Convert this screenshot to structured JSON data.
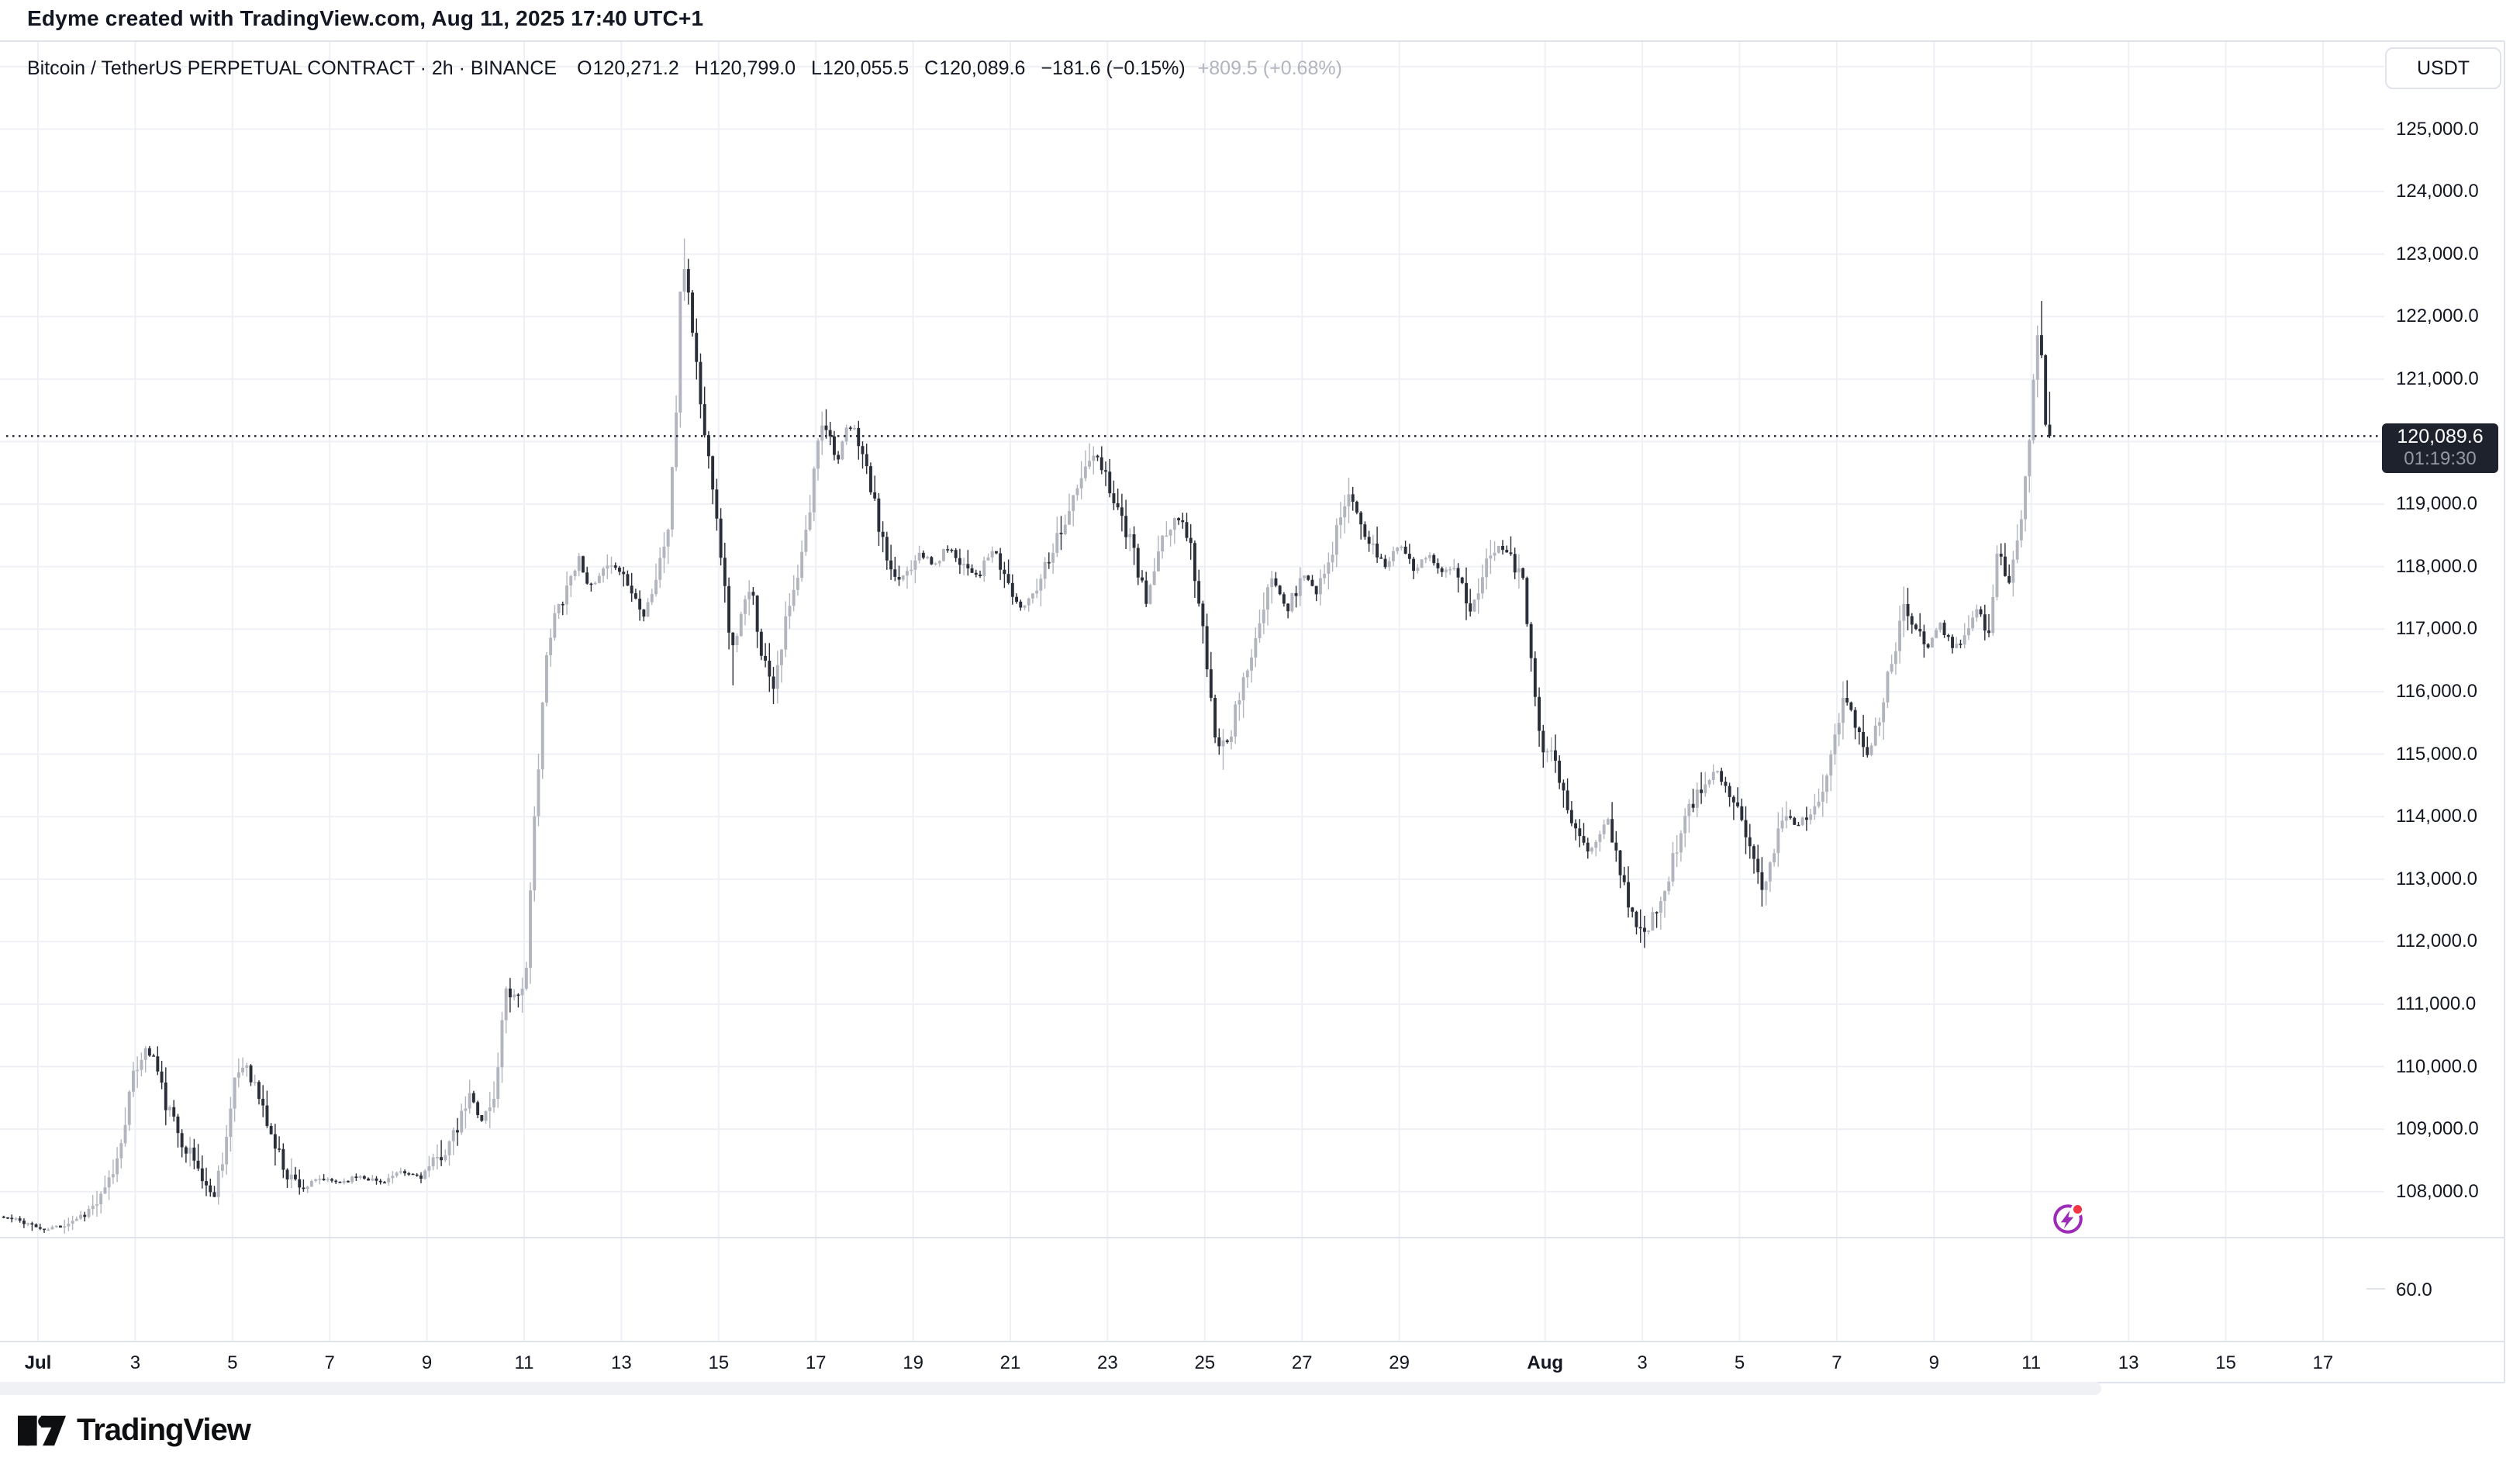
{
  "header": {
    "credit": "Edyme created with TradingView.com, Aug 11, 2025 17:40 UTC+1"
  },
  "symbol_row": {
    "description": "Bitcoin / TetherUS PERPETUAL CONTRACT · 2h · BINANCE",
    "ohlc_o_label": "O",
    "ohlc_o": "120,271.2",
    "ohlc_h_label": "H",
    "ohlc_h": "120,799.0",
    "ohlc_l_label": "L",
    "ohlc_l": "120,055.5",
    "ohlc_c_label": "C",
    "ohlc_c": "120,089.6",
    "change": "−181.6 (−0.15%)",
    "change_secondary": "+809.5 (+0.68%)"
  },
  "price_axis": {
    "currency": "USDT",
    "ticks": [
      {
        "label": "125,000.0",
        "value": 125000
      },
      {
        "label": "124,000.0",
        "value": 124000
      },
      {
        "label": "123,000.0",
        "value": 123000
      },
      {
        "label": "122,000.0",
        "value": 122000
      },
      {
        "label": "121,000.0",
        "value": 121000
      },
      {
        "label": "119,000.0",
        "value": 119000
      },
      {
        "label": "118,000.0",
        "value": 118000
      },
      {
        "label": "117,000.0",
        "value": 117000
      },
      {
        "label": "116,000.0",
        "value": 116000
      },
      {
        "label": "115,000.0",
        "value": 115000
      },
      {
        "label": "114,000.0",
        "value": 114000
      },
      {
        "label": "113,000.0",
        "value": 113000
      },
      {
        "label": "112,000.0",
        "value": 112000
      },
      {
        "label": "111,000.0",
        "value": 111000
      },
      {
        "label": "110,000.0",
        "value": 110000
      },
      {
        "label": "109,000.0",
        "value": 109000
      },
      {
        "label": "108,000.0",
        "value": 108000
      }
    ],
    "last_price": {
      "label": "120,089.6",
      "value": 120089.6,
      "countdown": "01:19:30"
    },
    "lower_pane_label": "60.0"
  },
  "time_axis": {
    "labels": [
      {
        "text": "Jul",
        "day": 0,
        "bold": true
      },
      {
        "text": "3",
        "day": 2
      },
      {
        "text": "5",
        "day": 4
      },
      {
        "text": "7",
        "day": 6
      },
      {
        "text": "9",
        "day": 8
      },
      {
        "text": "11",
        "day": 10
      },
      {
        "text": "13",
        "day": 12
      },
      {
        "text": "15",
        "day": 14
      },
      {
        "text": "17",
        "day": 16
      },
      {
        "text": "19",
        "day": 18
      },
      {
        "text": "21",
        "day": 20
      },
      {
        "text": "23",
        "day": 22
      },
      {
        "text": "25",
        "day": 24
      },
      {
        "text": "27",
        "day": 26
      },
      {
        "text": "29",
        "day": 28
      },
      {
        "text": "Aug",
        "day": 31,
        "bold": true
      },
      {
        "text": "3",
        "day": 33
      },
      {
        "text": "5",
        "day": 35
      },
      {
        "text": "7",
        "day": 37
      },
      {
        "text": "9",
        "day": 39
      },
      {
        "text": "11",
        "day": 41
      },
      {
        "text": "13",
        "day": 43
      },
      {
        "text": "15",
        "day": 45
      },
      {
        "text": "17",
        "day": 47
      }
    ]
  },
  "footer": {
    "brand": "TradingView"
  },
  "colors": {
    "up": "#b2b5be",
    "down": "#2a2e39",
    "text": "#131722",
    "muted_text": "#b2b5be",
    "grid": "#eef0f5",
    "border": "#e0e3eb",
    "badge_bg": "#1e222d",
    "badge_countdown": "#9598a1",
    "price_line": "#1a1e2a",
    "accent_purple": "#9c2bb8",
    "accent_red": "#f23645",
    "scroll_thumb": "#f0f1f5"
  },
  "chart_data": {
    "type": "candlestick",
    "title": "Bitcoin / TetherUS PERPETUAL CONTRACT",
    "interval": "2h",
    "exchange": "BINANCE",
    "quote_currency": "USDT",
    "x_range": [
      "Jun 30 2025",
      "Aug 11 2025 17:40"
    ],
    "y_axis": {
      "min": 107000,
      "max": 126000,
      "tick_step": 1000,
      "grid": true
    },
    "lower_pane_value": 60.0,
    "ohlc_last": {
      "open": 120271.2,
      "high": 120799.0,
      "low": 120055.5,
      "close": 120089.6,
      "change": -181.6,
      "change_pct": -0.15,
      "change2": 809.5,
      "change2_pct": 0.68
    },
    "last_price": 120089.6,
    "price_anchors": [
      [
        -0.42,
        107600
      ],
      [
        0.08,
        107520
      ],
      [
        0.5,
        107380
      ],
      [
        0.92,
        107480
      ],
      [
        1.33,
        107650
      ],
      [
        1.71,
        107900
      ],
      [
        2.0,
        108500
      ],
      [
        2.29,
        109700
      ],
      [
        2.54,
        110300
      ],
      [
        2.75,
        110150
      ],
      [
        3.0,
        109400
      ],
      [
        3.29,
        108900
      ],
      [
        3.58,
        108500
      ],
      [
        3.96,
        107900
      ],
      [
        4.21,
        108700
      ],
      [
        4.46,
        109900
      ],
      [
        4.67,
        110050
      ],
      [
        4.92,
        109500
      ],
      [
        5.21,
        108800
      ],
      [
        5.5,
        108300
      ],
      [
        5.83,
        108050
      ],
      [
        6.17,
        108200
      ],
      [
        6.58,
        108150
      ],
      [
        7.0,
        108250
      ],
      [
        7.42,
        108150
      ],
      [
        7.83,
        108300
      ],
      [
        8.25,
        108250
      ],
      [
        8.58,
        108500
      ],
      [
        8.96,
        108900
      ],
      [
        9.25,
        109550
      ],
      [
        9.5,
        109150
      ],
      [
        9.75,
        109450
      ],
      [
        10.0,
        111300
      ],
      [
        10.21,
        111100
      ],
      [
        10.42,
        111500
      ],
      [
        10.58,
        113900
      ],
      [
        10.79,
        116300
      ],
      [
        11.0,
        117200
      ],
      [
        11.25,
        117700
      ],
      [
        11.5,
        118150
      ],
      [
        11.75,
        117650
      ],
      [
        12.0,
        117900
      ],
      [
        12.29,
        118050
      ],
      [
        12.58,
        117600
      ],
      [
        12.83,
        117250
      ],
      [
        13.08,
        117800
      ],
      [
        13.33,
        118600
      ],
      [
        13.5,
        120500
      ],
      [
        13.62,
        123050
      ],
      [
        13.75,
        122400
      ],
      [
        13.92,
        121200
      ],
      [
        14.08,
        120100
      ],
      [
        14.29,
        119200
      ],
      [
        14.5,
        117600
      ],
      [
        14.65,
        116600
      ],
      [
        14.83,
        117200
      ],
      [
        15.04,
        117650
      ],
      [
        15.29,
        116500
      ],
      [
        15.5,
        116150
      ],
      [
        15.75,
        117100
      ],
      [
        16.0,
        117800
      ],
      [
        16.25,
        118900
      ],
      [
        16.46,
        120400
      ],
      [
        16.62,
        120150
      ],
      [
        16.83,
        119700
      ],
      [
        17.04,
        120250
      ],
      [
        17.25,
        120050
      ],
      [
        17.46,
        119400
      ],
      [
        17.71,
        118500
      ],
      [
        17.96,
        117700
      ],
      [
        18.21,
        117900
      ],
      [
        18.5,
        118250
      ],
      [
        18.79,
        118000
      ],
      [
        19.08,
        118300
      ],
      [
        19.42,
        118050
      ],
      [
        19.71,
        117850
      ],
      [
        20.0,
        118250
      ],
      [
        20.29,
        117800
      ],
      [
        20.58,
        117300
      ],
      [
        20.88,
        117650
      ],
      [
        21.17,
        118200
      ],
      [
        21.5,
        118750
      ],
      [
        21.79,
        119300
      ],
      [
        22.04,
        119800
      ],
      [
        22.29,
        119550
      ],
      [
        22.58,
        118950
      ],
      [
        22.88,
        118300
      ],
      [
        23.17,
        117400
      ],
      [
        23.46,
        118300
      ],
      [
        23.75,
        118800
      ],
      [
        24.04,
        118550
      ],
      [
        24.33,
        117000
      ],
      [
        24.58,
        115200
      ],
      [
        24.88,
        115300
      ],
      [
        25.17,
        116200
      ],
      [
        25.46,
        116900
      ],
      [
        25.75,
        117800
      ],
      [
        26.08,
        117300
      ],
      [
        26.38,
        117900
      ],
      [
        26.67,
        117600
      ],
      [
        27.0,
        118300
      ],
      [
        27.29,
        119200
      ],
      [
        27.54,
        118900
      ],
      [
        27.79,
        118300
      ],
      [
        28.08,
        118000
      ],
      [
        28.38,
        118400
      ],
      [
        28.67,
        117900
      ],
      [
        29.0,
        118200
      ],
      [
        29.29,
        117900
      ],
      [
        29.54,
        118100
      ],
      [
        29.79,
        117200
      ],
      [
        30.08,
        117900
      ],
      [
        30.38,
        118400
      ],
      [
        30.67,
        118200
      ],
      [
        30.92,
        117700
      ],
      [
        31.08,
        116600
      ],
      [
        31.29,
        115200
      ],
      [
        31.54,
        114950
      ],
      [
        31.79,
        114200
      ],
      [
        32.04,
        113700
      ],
      [
        32.29,
        113400
      ],
      [
        32.63,
        113950
      ],
      [
        32.88,
        113300
      ],
      [
        33.13,
        112500
      ],
      [
        33.38,
        112100
      ],
      [
        33.63,
        112400
      ],
      [
        33.88,
        113000
      ],
      [
        34.13,
        113650
      ],
      [
        34.38,
        114200
      ],
      [
        34.63,
        114450
      ],
      [
        34.88,
        114800
      ],
      [
        35.13,
        114500
      ],
      [
        35.38,
        114050
      ],
      [
        35.63,
        113400
      ],
      [
        35.83,
        112800
      ],
      [
        36.04,
        113400
      ],
      [
        36.29,
        114100
      ],
      [
        36.54,
        113850
      ],
      [
        36.83,
        114100
      ],
      [
        37.08,
        114500
      ],
      [
        37.33,
        115300
      ],
      [
        37.54,
        115900
      ],
      [
        37.79,
        115400
      ],
      [
        38.0,
        114950
      ],
      [
        38.25,
        115600
      ],
      [
        38.5,
        116500
      ],
      [
        38.75,
        117300
      ],
      [
        39.0,
        117100
      ],
      [
        39.25,
        116700
      ],
      [
        39.5,
        117100
      ],
      [
        39.75,
        116650
      ],
      [
        40.0,
        116950
      ],
      [
        40.25,
        117300
      ],
      [
        40.5,
        117000
      ],
      [
        40.7,
        118300
      ],
      [
        40.88,
        117700
      ],
      [
        41.04,
        118200
      ],
      [
        41.17,
        118800
      ],
      [
        41.29,
        119600
      ],
      [
        41.42,
        120900
      ],
      [
        41.5,
        121800
      ],
      [
        41.58,
        121500
      ],
      [
        41.667,
        120271.2
      ],
      [
        41.75,
        120089.6
      ]
    ],
    "wick_overrides": [
      {
        "day": 13.58,
        "high": 123250
      },
      {
        "day": 41.46,
        "high": 122250
      },
      {
        "day": 14.6,
        "low": 116100
      },
      {
        "day": 15.42,
        "low": 115800
      },
      {
        "day": 24.67,
        "low": 114750
      },
      {
        "day": 33.33,
        "low": 111900
      },
      {
        "day": 35.83,
        "low": 112580
      }
    ]
  }
}
